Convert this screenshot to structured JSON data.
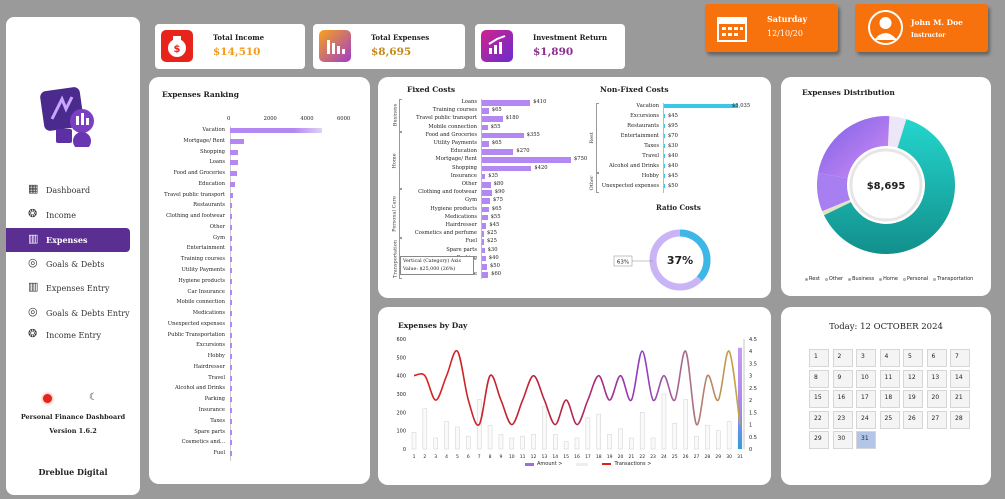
{
  "sidebar": {
    "nav": [
      {
        "label": "Dashboard"
      },
      {
        "label": "Income"
      },
      {
        "label": "Expenses"
      },
      {
        "label": "Goals & Debts"
      },
      {
        "label": "Expenses Entry"
      },
      {
        "label": "Goals & Debts Entry"
      },
      {
        "label": "Income Entry"
      }
    ],
    "app_name": "Personal Finance Dashboard",
    "version": "Version 1.6.2",
    "brand": "Dreblue Digital"
  },
  "kpis": {
    "income": {
      "title": "Total Income",
      "value": "$14,510",
      "color": "#f59b1c"
    },
    "expenses": {
      "title": "Total Expenses",
      "value": "$8,695",
      "color": "#c58a1c"
    },
    "returns": {
      "title": "Investment Return",
      "value": "$1,890",
      "color": "#8b2c8f"
    }
  },
  "date_card": {
    "day": "Saturday",
    "date": "12/10/20"
  },
  "user_card": {
    "name": "John M. Doe",
    "role": "Instructor"
  },
  "ranking": {
    "title": "Expenses Ranking",
    "axis_ticks": [
      "0",
      "2000",
      "4000",
      "6000"
    ],
    "categories": [
      "Vacation",
      "Mortgage/ Rent",
      "Shopping",
      "Loans",
      "Food and Groceries",
      "Education",
      "Travel public transport",
      "Restaurants",
      "Clothing and footwear",
      "Other",
      "Gym",
      "Entertainment",
      "Training courses",
      "Utility Payments",
      "Hygiene products",
      "Car Insurance",
      "Mobile connection",
      "Medications",
      "Unexpected expenses",
      "Public Transportation",
      "Excursions",
      "Hobby",
      "Hairdresser",
      "Travel",
      "Alcohol and Drinks",
      "Parking",
      "Insurance",
      "Taxes",
      "Spare parts",
      "Cosmetics and...",
      "Fuel"
    ],
    "values": [
      5035,
      750,
      420,
      410,
      355,
      270,
      180,
      95,
      90,
      80,
      75,
      70,
      65,
      65,
      65,
      60,
      55,
      55,
      50,
      50,
      45,
      45,
      45,
      40,
      40,
      40,
      35,
      30,
      30,
      25,
      25
    ]
  },
  "fixed": {
    "title": "Fixed Costs",
    "groups": [
      "Business",
      "Home",
      "Personal Care",
      "Transportation"
    ],
    "items": [
      {
        "label": "Loans",
        "value": 410,
        "text": "$410"
      },
      {
        "label": "Training courses",
        "value": 65,
        "text": "$65"
      },
      {
        "label": "Travel public transport",
        "value": 180,
        "text": "$180"
      },
      {
        "label": "Mobile connection",
        "value": 55,
        "text": "$55"
      },
      {
        "label": "Food and Groceries",
        "value": 355,
        "text": "$355"
      },
      {
        "label": "Utility Payments",
        "value": 65,
        "text": "$65"
      },
      {
        "label": "Education",
        "value": 270,
        "text": "$270"
      },
      {
        "label": "Mortgage/ Rent",
        "value": 750,
        "text": "$750"
      },
      {
        "label": "Shopping",
        "value": 420,
        "text": "$420"
      },
      {
        "label": "Insurance",
        "value": 35,
        "text": "$35"
      },
      {
        "label": "Other",
        "value": 80,
        "text": "$80"
      },
      {
        "label": "Clothing and footwear",
        "value": 90,
        "text": "$90"
      },
      {
        "label": "Gym",
        "value": 75,
        "text": "$75"
      },
      {
        "label": "Hygiene products",
        "value": 65,
        "text": "$65"
      },
      {
        "label": "Medications",
        "value": 55,
        "text": "$55"
      },
      {
        "label": "Hairdresser",
        "value": 45,
        "text": "$45"
      },
      {
        "label": "Cosmetics and perfume",
        "value": 25,
        "text": "$25"
      },
      {
        "label": "Fuel",
        "value": 25,
        "text": "$25"
      },
      {
        "label": "Spare parts",
        "value": 30,
        "text": "$30"
      },
      {
        "label": "Parking",
        "value": 40,
        "text": "$40"
      },
      {
        "label": "",
        "value": 50,
        "text": "$50"
      },
      {
        "label": "Car Insurance",
        "value": 60,
        "text": "$60"
      }
    ],
    "tooltip_line1": "Vertical (Category) Axis",
    "tooltip_line2": "Value: $25,000 (26%)"
  },
  "nonfixed": {
    "title": "Non-Fixed Costs",
    "groups": [
      "Rest",
      "Other"
    ],
    "items": [
      {
        "label": "Vacation",
        "value": 5035,
        "text": "$5,035"
      },
      {
        "label": "Excursions",
        "value": 45,
        "text": "$45"
      },
      {
        "label": "Restaurants",
        "value": 95,
        "text": "$95"
      },
      {
        "label": "Entertainment",
        "value": 70,
        "text": "$70"
      },
      {
        "label": "Taxes",
        "value": 30,
        "text": "$30"
      },
      {
        "label": "Travel",
        "value": 40,
        "text": "$40"
      },
      {
        "label": "Alcohol and Drinks",
        "value": 40,
        "text": "$40"
      },
      {
        "label": "Hobby",
        "value": 45,
        "text": "$45"
      },
      {
        "label": "Unexpected expenses",
        "value": 50,
        "text": "$50"
      }
    ]
  },
  "ratio": {
    "title": "Ratio Costs",
    "center": "37%",
    "side": "63%",
    "fraction": 0.37
  },
  "distribution": {
    "title": "Expenses Distribution",
    "total": "$8,695",
    "legend": [
      "Rest",
      "Other",
      "Business",
      "Home",
      "Personal",
      "Transportation"
    ],
    "colors": [
      "#1cb8b2",
      "#e3e3c4",
      "#a87ff0",
      "#b57be8",
      "#ede6f7",
      "#9fe3e0"
    ],
    "shares": [
      0.63,
      0.01,
      0.09,
      0.23,
      0.04,
      0.0
    ]
  },
  "daily": {
    "title": "Expenses by Day",
    "y_left": [
      "0",
      "100",
      "200",
      "300",
      "400",
      "500",
      "600"
    ],
    "y_right": [
      "0",
      "0.5",
      "1",
      "1.5",
      "2",
      "2.5",
      "3",
      "3.5",
      "4",
      "4.5"
    ],
    "days": [
      "1",
      "2",
      "3",
      "4",
      "5",
      "6",
      "7",
      "8",
      "9",
      "10",
      "11",
      "12",
      "13",
      "14",
      "15",
      "16",
      "17",
      "18",
      "19",
      "20",
      "21",
      "22",
      "23",
      "24",
      "25",
      "26",
      "27",
      "28",
      "29",
      "30",
      "31"
    ],
    "amounts": [
      90,
      220,
      60,
      150,
      120,
      70,
      270,
      130,
      80,
      60,
      70,
      80,
      230,
      80,
      40,
      60,
      170,
      190,
      80,
      110,
      60,
      200,
      60,
      300,
      140,
      270,
      70,
      130,
      100,
      150,
      100
    ],
    "transactions": [
      3,
      3,
      2,
      3,
      4,
      2,
      1,
      3,
      2,
      1,
      2,
      3,
      2,
      1,
      2,
      1,
      2,
      3,
      2,
      3,
      2,
      4,
      2,
      3,
      2,
      4,
      1,
      3,
      2,
      4,
      1
    ],
    "legend_amount": "Amount >",
    "legend_transactions": "Transactions >"
  },
  "calendar": {
    "title": "Today: 12 OCTOBER 2024",
    "days": [
      "1",
      "2",
      "3",
      "4",
      "5",
      "6",
      "7",
      "8",
      "9",
      "10",
      "11",
      "12",
      "13",
      "14",
      "15",
      "16",
      "17",
      "18",
      "19",
      "20",
      "21",
      "22",
      "23",
      "24",
      "25",
      "26",
      "27",
      "28",
      "29",
      "30",
      "31"
    ],
    "selected": "31"
  }
}
